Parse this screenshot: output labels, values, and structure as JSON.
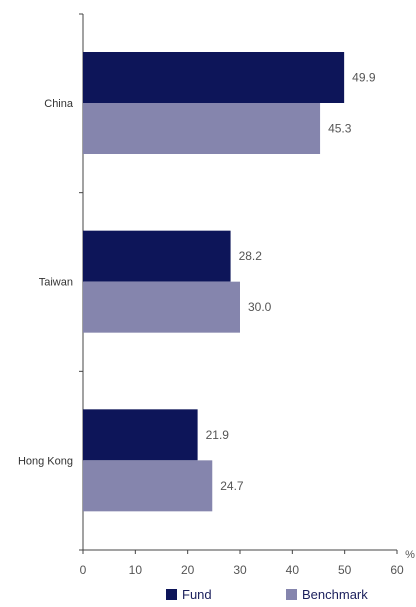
{
  "chart_data": {
    "type": "bar",
    "orientation": "horizontal",
    "categories": [
      "China",
      "Taiwan",
      "Hong Kong"
    ],
    "series": [
      {
        "name": "Fund",
        "values": [
          49.9,
          28.2,
          21.9
        ],
        "color": "#0d1559"
      },
      {
        "name": "Benchmark",
        "values": [
          45.3,
          30.0,
          24.7
        ],
        "color": "#8585ad"
      }
    ],
    "value_labels": [
      [
        "49.9",
        "28.2",
        "21.9"
      ],
      [
        "45.3",
        "30.0",
        "24.7"
      ]
    ],
    "xlim": [
      0,
      60
    ],
    "x_ticks": [
      "0",
      "10",
      "20",
      "30",
      "40",
      "50",
      "60"
    ],
    "x_unit": "%",
    "grid": false,
    "legend_position": "bottom"
  }
}
